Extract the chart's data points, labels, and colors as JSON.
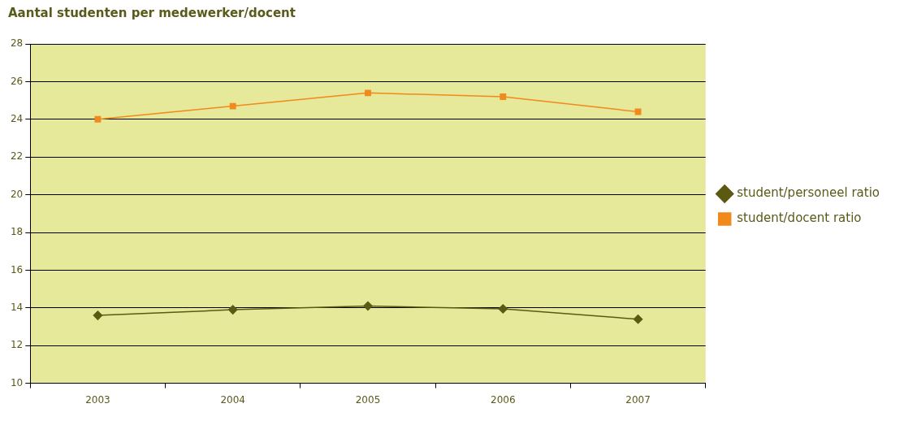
{
  "chart_data": {
    "type": "line",
    "title": "Aantal studenten per medewerker/docent",
    "categories": [
      "2003",
      "2004",
      "2005",
      "2006",
      "2007"
    ],
    "series": [
      {
        "name": "student/personeel ratio",
        "color": "#5c5a12",
        "marker": "diamond",
        "values": [
          13.6,
          13.9,
          14.1,
          13.95,
          13.4
        ]
      },
      {
        "name": "student/docent ratio",
        "color": "#f08a1c",
        "marker": "square",
        "values": [
          24.0,
          24.7,
          25.4,
          25.2,
          24.4
        ]
      }
    ],
    "ylim": [
      10,
      28
    ],
    "yticks": [
      10,
      12,
      14,
      16,
      18,
      20,
      22,
      24,
      26,
      28
    ],
    "grid": "y",
    "legend": "right",
    "line_style": "solid"
  }
}
